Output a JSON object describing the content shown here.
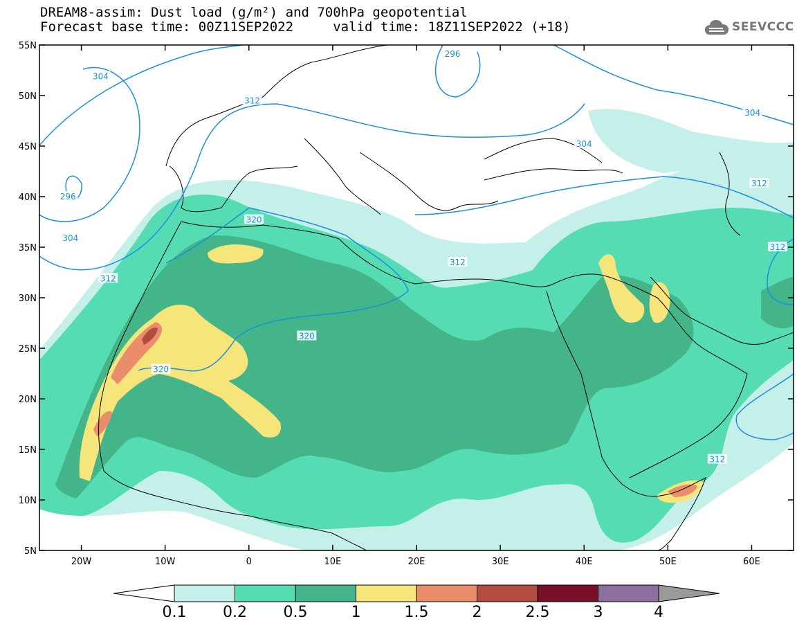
{
  "header": {
    "line1": "DREAM8-assim: Dust load (g/m²) and 700hPa geopotential",
    "line2": "Forecast base time: 00Z11SEP2022     valid time: 18Z11SEP2022 (+18)"
  },
  "logo": {
    "text": "SEEVCCC",
    "icon": "cloud-icon"
  },
  "map": {
    "lat_labels": [
      "55N",
      "50N",
      "45N",
      "40N",
      "35N",
      "30N",
      "25N",
      "20N",
      "15N",
      "10N",
      "5N"
    ],
    "lon_labels": [
      "20W",
      "10W",
      "0",
      "10E",
      "20E",
      "30E",
      "40E",
      "50E",
      "60E"
    ],
    "lon_range": [
      -25,
      65
    ],
    "lat_range": [
      5,
      55
    ]
  },
  "contours": [
    {
      "value": "296",
      "lon": -13.7,
      "lat": 53.6
    },
    {
      "value": "304",
      "lon": -20.1,
      "lat": 52.6
    },
    {
      "value": "312",
      "lon": -24.7,
      "lat": 51.3
    },
    {
      "value": "296",
      "lon": 24.2,
      "lat": 53.9
    },
    {
      "value": "304",
      "lon": 48.1,
      "lat": 44.6
    },
    {
      "value": "312",
      "lon": 60.1,
      "lat": 46.8
    }
  ],
  "contour_labels": [
    {
      "text": "304",
      "lon": -17.7,
      "lat": 51.9
    },
    {
      "text": "296",
      "lon": 24.3,
      "lat": 54.1
    },
    {
      "text": "312",
      "lon": 0.4,
      "lat": 49.5
    },
    {
      "text": "304",
      "lon": 40.0,
      "lat": 45.2
    },
    {
      "text": "304",
      "lon": 60.1,
      "lat": 48.3
    },
    {
      "text": "296",
      "lon": -21.6,
      "lat": 40.0
    },
    {
      "text": "304",
      "lon": -21.3,
      "lat": 35.9
    },
    {
      "text": "312",
      "lon": -16.8,
      "lat": 31.9
    },
    {
      "text": "320",
      "lon": 0.6,
      "lat": 37.7
    },
    {
      "text": "312",
      "lon": 60.9,
      "lat": 41.3
    },
    {
      "text": "312",
      "lon": 24.9,
      "lat": 33.5
    },
    {
      "text": "312",
      "lon": 63.1,
      "lat": 35.0
    },
    {
      "text": "320",
      "lon": 6.9,
      "lat": 26.2
    },
    {
      "text": "320",
      "lon": -10.5,
      "lat": 22.9
    },
    {
      "text": "312",
      "lon": 55.9,
      "lat": 14.0
    }
  ],
  "colorbar": {
    "labels": [
      "0.1",
      "0.2",
      "0.5",
      "1",
      "1.5",
      "2",
      "2.5",
      "3",
      "4"
    ],
    "colors": [
      "#c4f0e9",
      "#56dcb3",
      "#43b589",
      "#f6e57a",
      "#e98d6b",
      "#b24b40",
      "#7a0f2a",
      "#8c6ea0",
      "#9a9a9a"
    ]
  },
  "colors": {
    "contour": "#1a8fe0",
    "dust_low": "#c4f0e9",
    "dust_mid": "#56dcb3",
    "dust_high": "#43b589",
    "dust_yellow": "#f6e57a",
    "dust_orange": "#e98d6b",
    "dust_red": "#b24b40"
  }
}
